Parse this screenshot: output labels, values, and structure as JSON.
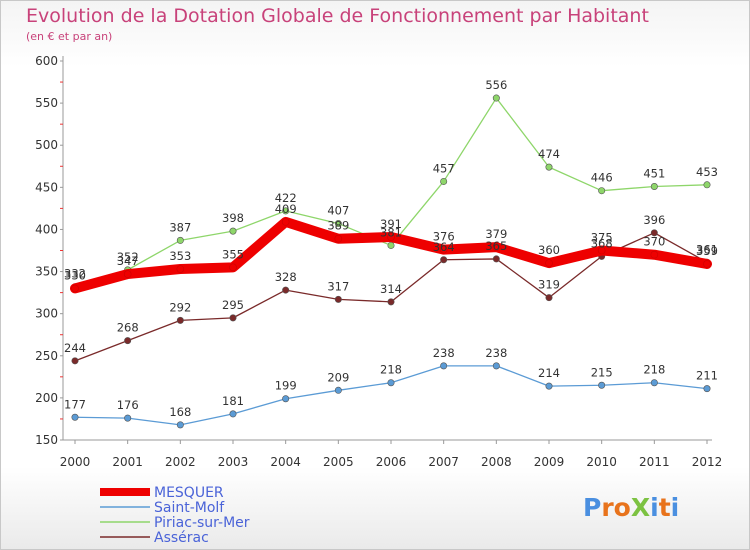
{
  "chart_data": {
    "type": "line",
    "title": "Evolution de la Dotation Globale de Fonctionnement par Habitant",
    "subtitle": "(en € et par an)",
    "x": [
      "2000",
      "2001",
      "2002",
      "2003",
      "2004",
      "2005",
      "2006",
      "2007",
      "2008",
      "2009",
      "2010",
      "2011",
      "2012"
    ],
    "yticks": [
      150,
      200,
      250,
      300,
      350,
      400,
      450,
      500,
      550,
      600
    ],
    "ylim": [
      150,
      600
    ],
    "grid": false,
    "legend_position": "bottom-left",
    "series": [
      {
        "name": "MESQUER",
        "color": "#ee0000",
        "values": [
          330,
          347,
          353,
          355,
          409,
          389,
          391,
          376,
          379,
          360,
          375,
          370,
          359
        ]
      },
      {
        "name": "Saint-Molf",
        "color": "#5b9bd5",
        "values": [
          177,
          176,
          168,
          181,
          199,
          209,
          218,
          238,
          238,
          214,
          215,
          218,
          211
        ]
      },
      {
        "name": "Piriac-sur-Mer",
        "color": "#8ed66a",
        "values": [
          332,
          352,
          387,
          398,
          422,
          407,
          381,
          457,
          556,
          474,
          446,
          451,
          453
        ]
      },
      {
        "name": "Assérac",
        "color": "#7a2a2a",
        "values": [
          244,
          268,
          292,
          295,
          328,
          317,
          314,
          364,
          365,
          319,
          368,
          396,
          361
        ]
      }
    ]
  },
  "logo": {
    "text": "ProXiti",
    "colors": [
      "#4a8fe0",
      "#e8731c",
      "#e8731c",
      "#7cc242",
      "#4a8fe0",
      "#e8731c",
      "#4a8fe0"
    ]
  }
}
